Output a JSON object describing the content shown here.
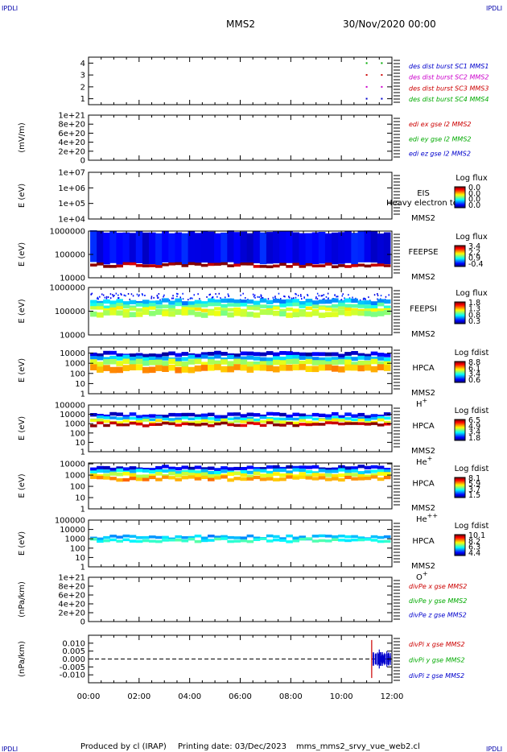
{
  "header": {
    "corner_left": "IPDLI",
    "corner_right": "IPDLI",
    "spacecraft": "MMS2",
    "date": "30/Nov/2020 00:00"
  },
  "footer": {
    "produced_by": "Produced by cl (IRAP)",
    "printing_date": "Printing date: 03/Dec/2023",
    "file": "mms_mms2_srvy_vue_web2.cl",
    "corner_left": "IPDLI",
    "corner_right": "IPDLI"
  },
  "x_axis": {
    "ticks": [
      "00:00",
      "02:00",
      "04:00",
      "06:00",
      "08:00",
      "10:00",
      "12:00"
    ],
    "range_hours": [
      0,
      12
    ]
  },
  "chart_data": [
    {
      "id": "burst",
      "type": "scatter",
      "ylabel": "",
      "yticks": [
        "4",
        "3",
        "2",
        "1"
      ],
      "ylim": [
        0.5,
        4.5
      ],
      "legend": [
        {
          "text": "des dist burst SC1 MMS1",
          "color": "#0000cc"
        },
        {
          "text": "des dist burst SC2 MMS2",
          "color": "#cc00cc"
        },
        {
          "text": "des dist burst SC3 MMS3",
          "color": "#cc0000"
        },
        {
          "text": "des dist burst SC4 MMS4",
          "color": "#00aa00"
        }
      ],
      "series": [
        {
          "name": "des dist burst SC1 MMS1",
          "color": "#0000cc",
          "y": 1,
          "x": [
            11.0,
            11.6
          ]
        },
        {
          "name": "des dist burst SC2 MMS2",
          "color": "#cc00cc",
          "y": 2,
          "x": [
            11.0,
            11.6
          ]
        },
        {
          "name": "des dist burst SC3 MMS3",
          "color": "#cc0000",
          "y": 3,
          "x": [
            11.0,
            11.6
          ]
        },
        {
          "name": "des dist burst SC4 MMS4",
          "color": "#00aa00",
          "y": 4,
          "x": [
            11.0,
            11.6
          ]
        }
      ]
    },
    {
      "id": "edi",
      "type": "line",
      "ylabel": "(mV/m)",
      "yticks": [
        "1e+21",
        "8e+20",
        "6e+20",
        "4e+20",
        "2e+20",
        "0"
      ],
      "ylim": [
        0,
        1e+21
      ],
      "zero_line": true,
      "legend": [
        {
          "text": "edi ex gse l2 MMS2",
          "color": "#cc0000"
        },
        {
          "text": "edi ey gse l2 MMS2",
          "color": "#00aa00"
        },
        {
          "text": "edi ez gse l2 MMS2",
          "color": "#0000cc"
        }
      ]
    },
    {
      "id": "eis",
      "type": "heatmap",
      "ylabel": "E (eV)",
      "yticks": [
        "1e+07",
        "1e+06",
        "1e+05",
        "1e+04"
      ],
      "ylim": [
        10000.0,
        10000000.0
      ],
      "instrument": "EIS",
      "spacecraft": "MMS2",
      "overlay_text": "Heavy electron to",
      "colorbar": {
        "title": "Log flux",
        "ticks": [
          "0.0",
          "0.0",
          "0.0",
          "0.0"
        ]
      }
    },
    {
      "id": "feepse",
      "type": "heatmap",
      "ylabel": "E (eV)",
      "yticks": [
        "1000000",
        "100000",
        "10000"
      ],
      "ylim": [
        10000.0,
        1000000.0
      ],
      "instrument": "FEEPSE",
      "spacecraft": "MMS2",
      "colorbar": {
        "title": "Log flux",
        "ticks": [
          "3.4",
          "2.2",
          "0.9",
          "-0.4"
        ]
      },
      "bands": [
        {
          "from": 40000,
          "to": 1000000,
          "level": 0.12
        },
        {
          "from": 30000,
          "to": 40000,
          "level": 0.97
        }
      ]
    },
    {
      "id": "feepsi",
      "type": "heatmap",
      "ylabel": "E (eV)",
      "yticks": [
        "1000000",
        "100000",
        "10000"
      ],
      "ylim": [
        10000.0,
        1000000.0
      ],
      "instrument": "FEEPSI",
      "spacecraft": "MMS2",
      "colorbar": {
        "title": "Log flux",
        "ticks": [
          "1.8",
          "1.3",
          "0.8",
          "0.3"
        ]
      },
      "bands": [
        {
          "from": 300000,
          "to": 600000,
          "level": 0.08,
          "sparse": true
        },
        {
          "from": 200000,
          "to": 300000,
          "level": 0.3
        },
        {
          "from": 140000,
          "to": 200000,
          "level": 0.45
        },
        {
          "from": 100000,
          "to": 140000,
          "level": 0.6
        },
        {
          "from": 60000,
          "to": 100000,
          "level": 0.55
        }
      ]
    },
    {
      "id": "hpca_h",
      "type": "heatmap",
      "ylabel": "E (eV)",
      "yticks": [
        "10000",
        "1000",
        "100",
        "10",
        "1"
      ],
      "ylim": [
        1,
        40000
      ],
      "instrument": "HPCA",
      "spacecraft": "MMS2",
      "species": "H",
      "species_charge": "+",
      "colorbar": {
        "title": "Log fdist",
        "ticks": [
          "8.8",
          "6.1",
          "3.4",
          "0.6"
        ]
      },
      "bands": [
        {
          "from": 5000,
          "to": 12000,
          "level": 0.08
        },
        {
          "from": 2000,
          "to": 5000,
          "level": 0.3
        },
        {
          "from": 600,
          "to": 2000,
          "level": 0.55
        },
        {
          "from": 150,
          "to": 600,
          "level": 0.7
        }
      ]
    },
    {
      "id": "hpca_he",
      "type": "heatmap",
      "ylabel": "E (eV)",
      "yticks": [
        "100000",
        "10000",
        "1000",
        "100",
        "10",
        "1"
      ],
      "ylim": [
        1,
        100000
      ],
      "instrument": "HPCA",
      "spacecraft": "MMS2",
      "species": "He",
      "species_charge": "+",
      "colorbar": {
        "title": "Log fdist",
        "ticks": [
          "6.5",
          "4.9",
          "3.4",
          "1.8"
        ]
      },
      "bands": [
        {
          "from": 5000,
          "to": 12000,
          "level": 0.1
        },
        {
          "from": 2500,
          "to": 5000,
          "level": 0.32
        },
        {
          "from": 1200,
          "to": 2500,
          "level": 0.6
        },
        {
          "from": 600,
          "to": 1200,
          "level": 0.95
        }
      ]
    },
    {
      "id": "hpca_hepp",
      "type": "heatmap",
      "ylabel": "E (eV)",
      "yticks": [
        "10000",
        "1000",
        "100",
        "10",
        "1"
      ],
      "ylim": [
        1,
        12000
      ],
      "instrument": "HPCA",
      "spacecraft": "MMS2",
      "species": "He",
      "species_charge": "++",
      "colorbar": {
        "title": "Log fdist",
        "ticks": [
          "8.1",
          "5.9",
          "3.7",
          "1.5"
        ]
      },
      "bands": [
        {
          "from": 3000,
          "to": 6000,
          "level": 0.1
        },
        {
          "from": 1500,
          "to": 3000,
          "level": 0.35
        },
        {
          "from": 700,
          "to": 1500,
          "level": 0.6
        },
        {
          "from": 350,
          "to": 700,
          "level": 0.72
        }
      ]
    },
    {
      "id": "hpca_o",
      "type": "heatmap",
      "ylabel": "E (eV)",
      "yticks": [
        "100000",
        "10000",
        "1000",
        "100",
        "10",
        "1"
      ],
      "ylim": [
        1,
        100000
      ],
      "instrument": "HPCA",
      "spacecraft": "MMS2",
      "species": "O",
      "species_charge": "+",
      "colorbar": {
        "title": "Log fdist",
        "ticks": [
          "10.1",
          "8.2",
          "6.3",
          "4.4"
        ]
      },
      "bands": [
        {
          "from": 1000,
          "to": 2000,
          "level": 0.3
        },
        {
          "from": 500,
          "to": 1000,
          "level": 0.4
        }
      ]
    },
    {
      "id": "divpe",
      "type": "line",
      "ylabel": "(nPa/km)",
      "yticks": [
        "1e+21",
        "8e+20",
        "6e+20",
        "4e+20",
        "2e+20",
        "0"
      ],
      "ylim": [
        0,
        1e+21
      ],
      "zero_line": true,
      "legend": [
        {
          "text": "divPe x gse MMS2",
          "color": "#cc0000"
        },
        {
          "text": "divPe y gse MMS2",
          "color": "#00aa00"
        },
        {
          "text": "divPe z gse MMS2",
          "color": "#0000cc"
        }
      ]
    },
    {
      "id": "divpi",
      "type": "line",
      "ylabel": "(nPa/km)",
      "yticks": [
        "0.010",
        "0.005",
        "0.000",
        "-0.005",
        "-0.010"
      ],
      "ylim": [
        -0.015,
        0.015
      ],
      "zero_line": true,
      "legend": [
        {
          "text": "divPi x gse MMS2",
          "color": "#cc0000"
        },
        {
          "text": "divPi y gse MMS2",
          "color": "#00aa00"
        },
        {
          "text": "divPi z gse MMS2",
          "color": "#0000cc"
        }
      ],
      "spikes": [
        {
          "x": 11.2,
          "color": "#cc0000",
          "amp": 0.012
        },
        {
          "x": 11.5,
          "color": "#0000cc",
          "amp": 0.006
        },
        {
          "x": 11.8,
          "color": "#0000cc",
          "amp": 0.005
        }
      ]
    }
  ]
}
